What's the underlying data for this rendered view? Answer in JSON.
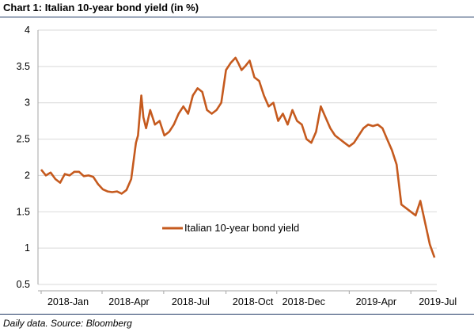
{
  "title": "Chart 1: Italian 10-year bond yield (in %)",
  "footnote": "Daily data. Source: Bloomberg",
  "colors": {
    "series": "#c55a1e",
    "grid": "#d9d9d9",
    "rule": "#1f3864"
  },
  "chart_data": {
    "type": "line",
    "title": "Chart 1: Italian 10-year bond yield (in %)",
    "xlabel": "",
    "ylabel": "",
    "ylim": [
      0.5,
      4
    ],
    "yticks": [
      "4",
      "3.5",
      "3",
      "2.5",
      "2",
      "1.5",
      "1",
      "0.5"
    ],
    "xticks": [
      "2018-Jan",
      "2018-Apr",
      "2018-Jul",
      "2018-Oct",
      "2018-Dec",
      "2019-Apr",
      "2019-Jul"
    ],
    "grid": "horizontal",
    "legend": "center",
    "series": [
      {
        "name": "Italian 10-year bond yield",
        "color": "#c55a1e",
        "x": [
          "2018-01-01",
          "2018-01-08",
          "2018-01-15",
          "2018-01-22",
          "2018-01-29",
          "2018-02-05",
          "2018-02-12",
          "2018-02-19",
          "2018-02-26",
          "2018-03-05",
          "2018-03-12",
          "2018-03-19",
          "2018-03-26",
          "2018-04-02",
          "2018-04-09",
          "2018-04-16",
          "2018-04-23",
          "2018-04-30",
          "2018-05-07",
          "2018-05-14",
          "2018-05-21",
          "2018-05-24",
          "2018-05-29",
          "2018-06-01",
          "2018-06-05",
          "2018-06-11",
          "2018-06-18",
          "2018-06-25",
          "2018-07-02",
          "2018-07-09",
          "2018-07-16",
          "2018-07-23",
          "2018-07-30",
          "2018-08-06",
          "2018-08-13",
          "2018-08-20",
          "2018-08-27",
          "2018-09-03",
          "2018-09-10",
          "2018-09-17",
          "2018-09-24",
          "2018-10-01",
          "2018-10-08",
          "2018-10-15",
          "2018-10-19",
          "2018-10-24",
          "2018-10-29",
          "2018-11-05",
          "2018-11-12",
          "2018-11-19",
          "2018-11-26",
          "2018-12-03",
          "2018-12-10",
          "2018-12-17",
          "2018-12-24",
          "2018-12-31",
          "2019-01-07",
          "2019-01-14",
          "2019-01-21",
          "2019-01-28",
          "2019-02-04",
          "2019-02-11",
          "2019-02-18",
          "2019-02-25",
          "2019-03-04",
          "2019-03-11",
          "2019-03-18",
          "2019-03-25",
          "2019-04-01",
          "2019-04-08",
          "2019-04-15",
          "2019-04-22",
          "2019-04-29",
          "2019-05-06",
          "2019-05-13",
          "2019-05-20",
          "2019-05-27",
          "2019-06-03",
          "2019-06-10",
          "2019-06-17",
          "2019-06-24",
          "2019-07-01",
          "2019-07-08",
          "2019-07-15",
          "2019-07-22",
          "2019-07-29",
          "2019-08-05"
        ],
        "values": [
          2.08,
          2.0,
          2.04,
          1.95,
          1.9,
          2.02,
          2.0,
          2.05,
          2.05,
          1.99,
          2.0,
          1.98,
          1.88,
          1.81,
          1.78,
          1.77,
          1.78,
          1.75,
          1.8,
          1.95,
          2.45,
          2.55,
          3.1,
          2.8,
          2.65,
          2.9,
          2.7,
          2.75,
          2.55,
          2.6,
          2.7,
          2.85,
          2.95,
          2.85,
          3.1,
          3.2,
          3.15,
          2.9,
          2.85,
          2.9,
          3.0,
          3.45,
          3.55,
          3.62,
          3.55,
          3.45,
          3.5,
          3.58,
          3.35,
          3.3,
          3.1,
          2.95,
          3.0,
          2.75,
          2.85,
          2.7,
          2.9,
          2.75,
          2.7,
          2.5,
          2.45,
          2.6,
          2.95,
          2.8,
          2.65,
          2.55,
          2.5,
          2.45,
          2.4,
          2.45,
          2.55,
          2.65,
          2.7,
          2.68,
          2.7,
          2.65,
          2.5,
          2.35,
          2.15,
          1.6,
          1.55,
          1.5,
          1.45,
          1.65,
          1.35,
          1.05,
          0.87
        ]
      }
    ]
  }
}
